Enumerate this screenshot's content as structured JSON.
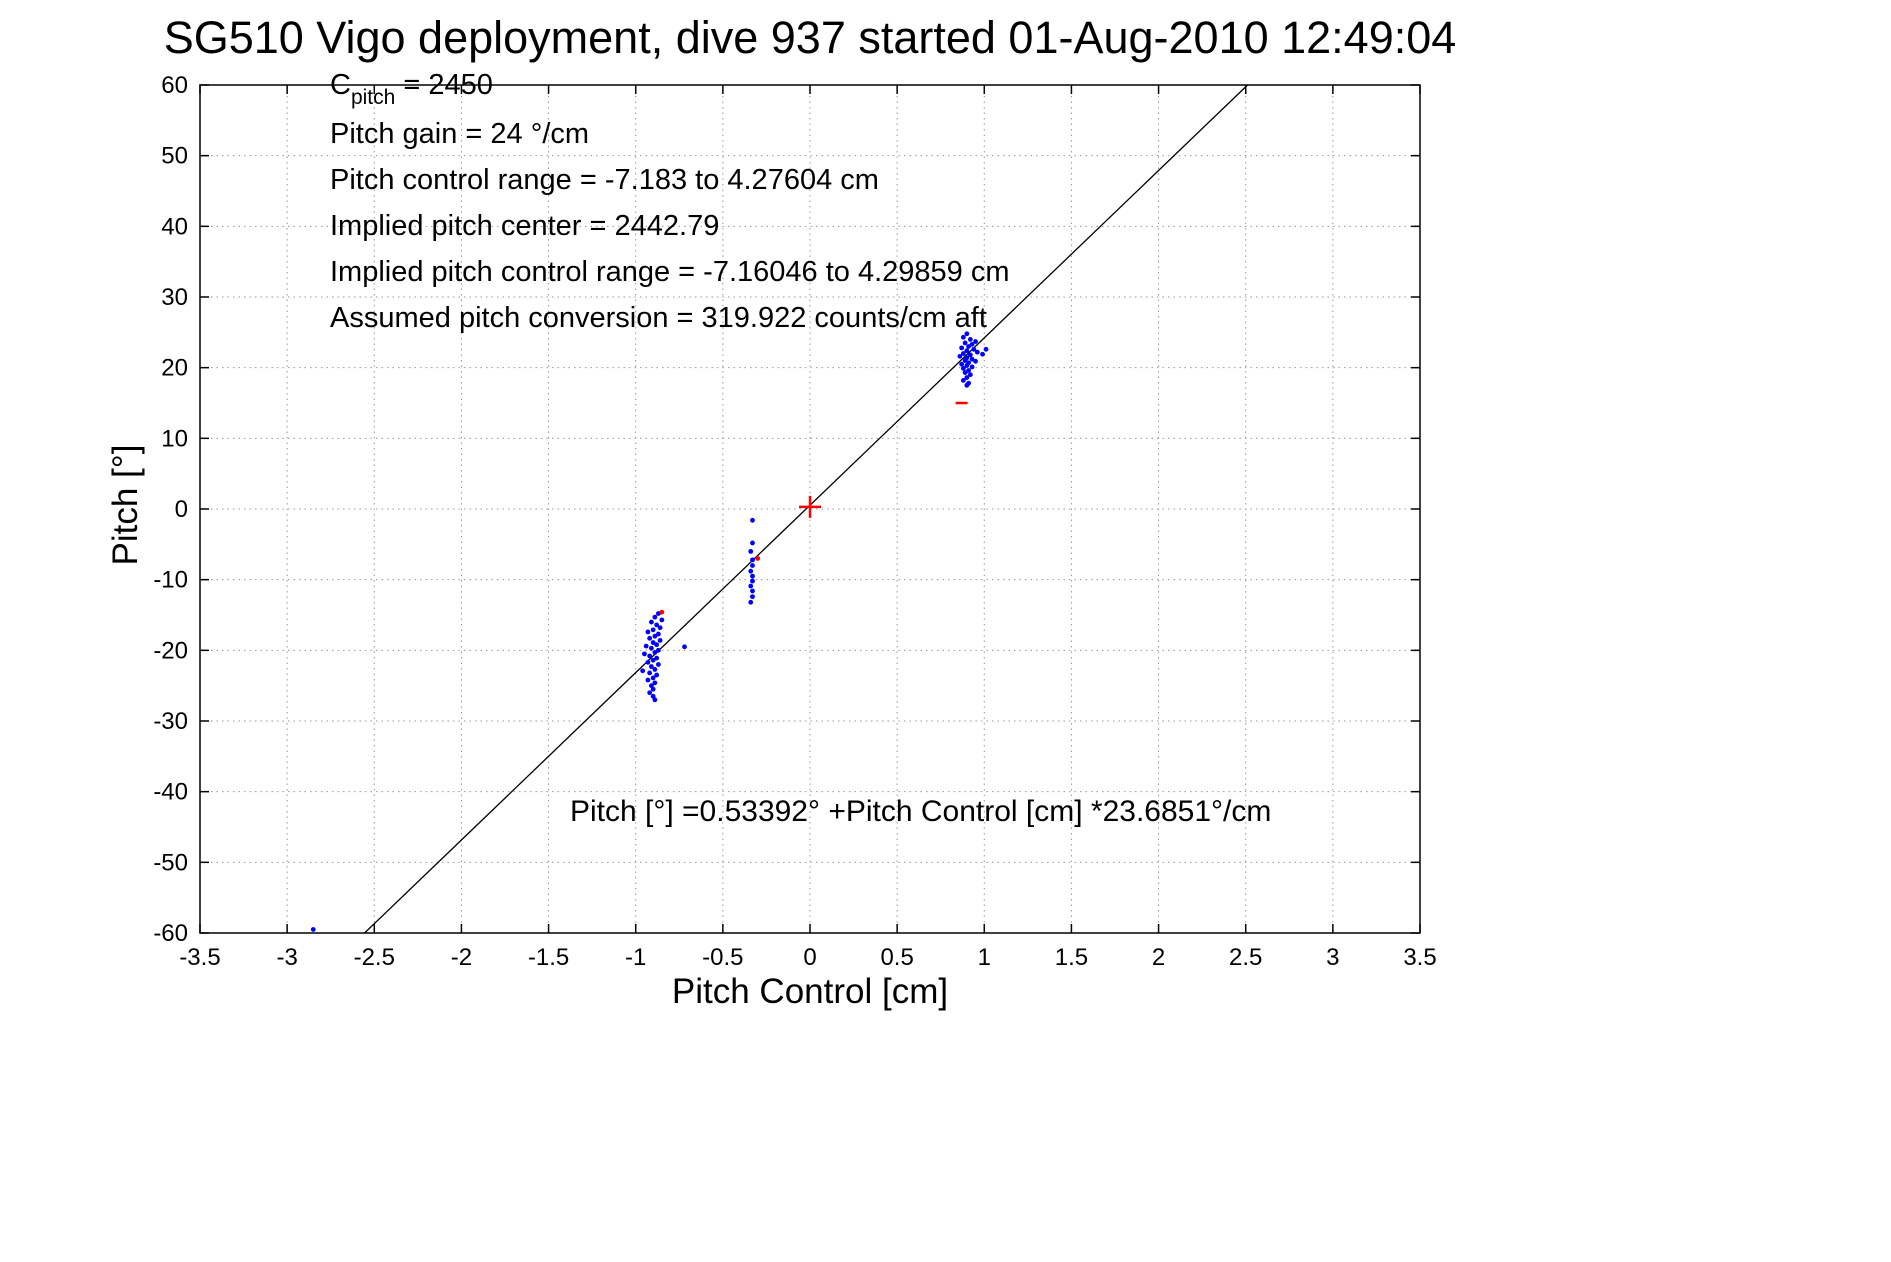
{
  "chart_data": {
    "type": "scatter",
    "title": "SG510 Vigo deployment, dive 937 started 01-Aug-2010 12:49:04",
    "xlabel": "Pitch Control [cm]",
    "ylabel": "Pitch [°]",
    "xlim": [
      -3.5,
      3.5
    ],
    "ylim": [
      -60,
      60
    ],
    "grid": true,
    "legend": "none",
    "xticks": [
      {
        "v": -3.5,
        "label": "-3.5"
      },
      {
        "v": -3,
        "label": "-3"
      },
      {
        "v": -2.5,
        "label": "-2.5"
      },
      {
        "v": -2,
        "label": "-2"
      },
      {
        "v": -1.5,
        "label": "-1.5"
      },
      {
        "v": -1,
        "label": "-1"
      },
      {
        "v": -0.5,
        "label": "-0.5"
      },
      {
        "v": 0,
        "label": "0"
      },
      {
        "v": 0.5,
        "label": "0.5"
      },
      {
        "v": 1,
        "label": "1"
      },
      {
        "v": 1.5,
        "label": "1.5"
      },
      {
        "v": 2,
        "label": "2"
      },
      {
        "v": 2.5,
        "label": "2.5"
      },
      {
        "v": 3,
        "label": "3"
      },
      {
        "v": 3.5,
        "label": "3.5"
      }
    ],
    "yticks": [
      {
        "v": -60,
        "label": "-60"
      },
      {
        "v": -50,
        "label": "-50"
      },
      {
        "v": -40,
        "label": "-40"
      },
      {
        "v": -30,
        "label": "-30"
      },
      {
        "v": -20,
        "label": "-20"
      },
      {
        "v": -10,
        "label": "-10"
      },
      {
        "v": 0,
        "label": "0"
      },
      {
        "v": 10,
        "label": "10"
      },
      {
        "v": 20,
        "label": "20"
      },
      {
        "v": 30,
        "label": "30"
      },
      {
        "v": 40,
        "label": "40"
      },
      {
        "v": 50,
        "label": "50"
      },
      {
        "v": 60,
        "label": "60"
      }
    ],
    "info": {
      "c_base": "C",
      "c_sub": "pitch",
      "c_rest": " = 2450",
      "lines": [
        "Pitch gain = 24 °/cm",
        "Pitch control range = -7.183 to 4.27604 cm",
        "Implied pitch center = 2442.79",
        "Implied pitch control range = -7.16046 to 4.29859 cm",
        "Assumed pitch conversion = 319.922 counts/cm aft"
      ]
    },
    "equation": "Pitch [°] =0.53392° +Pitch Control [cm] *23.6851°/cm",
    "fit_line": {
      "intercept": 0.53392,
      "slope": 23.6851,
      "color": "#000000"
    },
    "series": [
      {
        "name": "observed-pitch",
        "color": "#0000ff",
        "marker": "dot",
        "points": [
          [
            0.9,
            24.8
          ],
          [
            0.88,
            24.3
          ],
          [
            0.92,
            24.0
          ],
          [
            0.95,
            23.7
          ],
          [
            0.89,
            23.5
          ],
          [
            0.93,
            23.3
          ],
          [
            0.91,
            23.0
          ],
          [
            0.87,
            22.8
          ],
          [
            0.94,
            22.6
          ],
          [
            0.9,
            22.4
          ],
          [
            0.96,
            22.2
          ],
          [
            0.88,
            22.0
          ],
          [
            0.92,
            21.8
          ],
          [
            0.99,
            21.9
          ],
          [
            1.01,
            22.6
          ],
          [
            0.86,
            21.6
          ],
          [
            0.9,
            21.4
          ],
          [
            0.93,
            21.2
          ],
          [
            0.89,
            21.0
          ],
          [
            0.95,
            20.9
          ],
          [
            0.91,
            20.7
          ],
          [
            0.87,
            20.5
          ],
          [
            0.9,
            20.3
          ],
          [
            0.93,
            20.1
          ],
          [
            0.88,
            19.9
          ],
          [
            0.91,
            19.6
          ],
          [
            0.89,
            19.3
          ],
          [
            0.92,
            19.0
          ],
          [
            0.9,
            18.6
          ],
          [
            0.88,
            18.2
          ],
          [
            0.91,
            17.8
          ],
          [
            0.9,
            17.5
          ],
          [
            -0.33,
            -1.6
          ],
          [
            -0.33,
            -4.8
          ],
          [
            -0.34,
            -6.0
          ],
          [
            -0.33,
            -7.2
          ],
          [
            -0.33,
            -8.0
          ],
          [
            -0.34,
            -8.8
          ],
          [
            -0.33,
            -9.5
          ],
          [
            -0.33,
            -10.2
          ],
          [
            -0.34,
            -10.9
          ],
          [
            -0.33,
            -11.6
          ],
          [
            -0.33,
            -12.4
          ],
          [
            -0.34,
            -13.2
          ],
          [
            -0.87,
            -14.8
          ],
          [
            -0.89,
            -15.3
          ],
          [
            -0.85,
            -15.7
          ],
          [
            -0.91,
            -16.0
          ],
          [
            -0.88,
            -16.4
          ],
          [
            -0.86,
            -16.8
          ],
          [
            -0.9,
            -17.1
          ],
          [
            -0.93,
            -17.4
          ],
          [
            -0.87,
            -17.7
          ],
          [
            -0.89,
            -18.0
          ],
          [
            -0.92,
            -18.3
          ],
          [
            -0.86,
            -18.6
          ],
          [
            -0.9,
            -18.9
          ],
          [
            -0.88,
            -19.2
          ],
          [
            -0.94,
            -19.4
          ],
          [
            -0.72,
            -19.5
          ],
          [
            -0.91,
            -19.7
          ],
          [
            -0.87,
            -20.0
          ],
          [
            -0.89,
            -20.3
          ],
          [
            -0.95,
            -20.5
          ],
          [
            -0.92,
            -20.8
          ],
          [
            -0.88,
            -21.1
          ],
          [
            -0.9,
            -21.4
          ],
          [
            -0.93,
            -21.7
          ],
          [
            -0.87,
            -22.0
          ],
          [
            -0.91,
            -22.3
          ],
          [
            -0.89,
            -22.7
          ],
          [
            -0.96,
            -22.9
          ],
          [
            -0.92,
            -23.2
          ],
          [
            -0.88,
            -23.5
          ],
          [
            -0.9,
            -23.9
          ],
          [
            -0.93,
            -24.2
          ],
          [
            -0.89,
            -24.6
          ],
          [
            -0.91,
            -25.0
          ],
          [
            -0.9,
            -25.5
          ],
          [
            -0.92,
            -26.0
          ],
          [
            -0.9,
            -26.5
          ],
          [
            -0.89,
            -27.0
          ],
          [
            -2.85,
            -59.5
          ]
        ]
      },
      {
        "name": "flagged-points",
        "color": "#ff0000",
        "points": [
          {
            "x": 0.0,
            "y": 0.3,
            "marker": "plus"
          },
          {
            "x": 0.87,
            "y": 15.0,
            "marker": "dash"
          },
          {
            "x": -0.3,
            "y": -7.0,
            "marker": "dot"
          },
          {
            "x": -0.85,
            "y": -14.6,
            "marker": "dot"
          }
        ]
      }
    ],
    "colors": {
      "axis": "#000000",
      "grid": "#999999",
      "background": "#ffffff"
    }
  }
}
